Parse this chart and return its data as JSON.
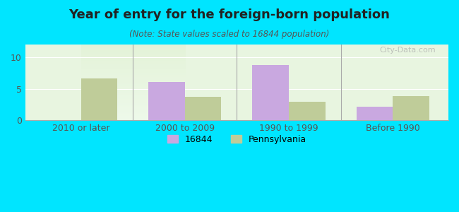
{
  "title": "Year of entry for the foreign-born population",
  "subtitle": "(Note: State values scaled to 16844 population)",
  "categories": [
    "2010 or later",
    "2000 to 2009",
    "1990 to 1999",
    "Before 1990"
  ],
  "values_16844": [
    0,
    6.1,
    8.8,
    2.2
  ],
  "values_pa": [
    6.6,
    3.7,
    2.9,
    3.8
  ],
  "color_16844": "#c9a8e0",
  "color_pa": "#bfcc99",
  "background_outer": "#00e5ff",
  "background_inner_top": "#e8f5e0",
  "background_inner_bottom": "#f0fff0",
  "ylim": [
    0,
    12
  ],
  "yticks": [
    0,
    5,
    10
  ],
  "legend_16844": "16844",
  "legend_pa": "Pennsylvania",
  "bar_width": 0.35,
  "watermark": "City-Data.com"
}
